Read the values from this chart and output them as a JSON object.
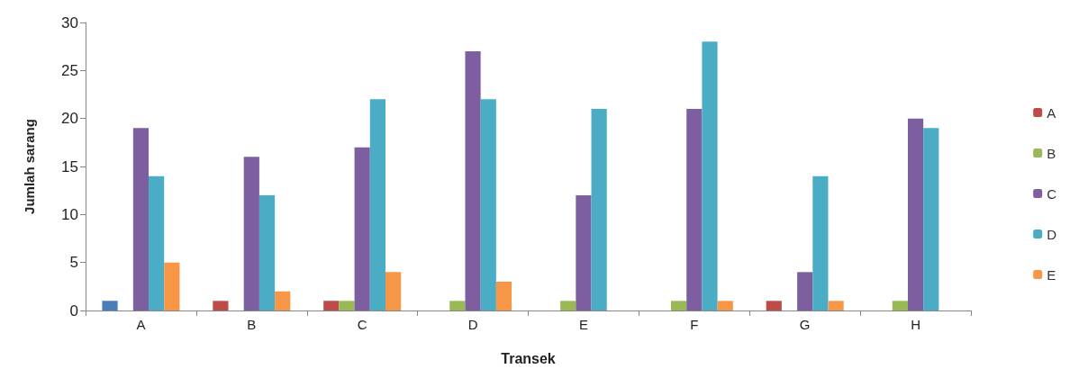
{
  "chart_data": {
    "type": "bar",
    "xlabel": "Transek",
    "ylabel": "Jumlah sarang",
    "categories": [
      "A",
      "B",
      "C",
      "D",
      "E",
      "F",
      "G",
      "H"
    ],
    "series": [
      {
        "name": "A",
        "color": "#be4b48",
        "colors": [
          "#4a7ebb",
          "#be4b48",
          "#be4b48",
          "#be4b48",
          "#be4b48",
          "#be4b48",
          "#be4b48",
          "#be4b48"
        ],
        "values": [
          1,
          1,
          1,
          0,
          0,
          0,
          1,
          0
        ]
      },
      {
        "name": "B",
        "color": "#98b954",
        "values": [
          0,
          0,
          1,
          1,
          1,
          1,
          0,
          1
        ]
      },
      {
        "name": "C",
        "color": "#7d5fa0",
        "values": [
          19,
          16,
          17,
          27,
          12,
          21,
          4,
          20
        ]
      },
      {
        "name": "D",
        "color": "#4bacc6",
        "values": [
          14,
          12,
          22,
          22,
          21,
          28,
          14,
          19
        ]
      },
      {
        "name": "E",
        "color": "#f79646",
        "values": [
          5,
          2,
          4,
          3,
          0,
          1,
          1,
          0
        ]
      }
    ],
    "ylim": [
      0,
      30
    ],
    "yticks": [
      0,
      5,
      10,
      15,
      20,
      25,
      30
    ],
    "grid": false,
    "legend": "right"
  }
}
